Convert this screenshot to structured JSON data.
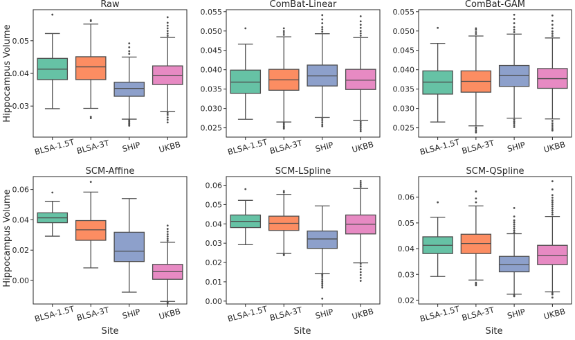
{
  "figure": {
    "x_axis_label": "Site",
    "y_axis_label": "Hippocampus Volume"
  },
  "site_colors": [
    "#66c2a5",
    "#fc8d62",
    "#8da0cb",
    "#e78ac3"
  ],
  "chart_data": [
    {
      "type": "boxplot",
      "title": "Raw",
      "categories": [
        "BLSA-1.5T",
        "BLSA-3T",
        "SHIP",
        "UKBB"
      ],
      "ylim": [
        0.0205,
        0.0595
      ],
      "yticks": [
        0.03,
        0.04,
        0.05
      ],
      "ytick_labels": [
        "0.03",
        "0.04",
        "0.05"
      ],
      "boxes": [
        {
          "whislo": 0.0292,
          "q1": 0.0381,
          "med": 0.0413,
          "q3": 0.0446,
          "whishi": 0.0522,
          "fliers": [
            0.058
          ]
        },
        {
          "whislo": 0.0293,
          "q1": 0.0381,
          "med": 0.042,
          "q3": 0.0451,
          "whishi": 0.0551,
          "fliers": [
            0.056,
            0.0563,
            0.0267,
            0.0263
          ]
        },
        {
          "whislo": 0.026,
          "q1": 0.033,
          "med": 0.0354,
          "q3": 0.0373,
          "whishi": 0.045,
          "fliers": [
            0.046,
            0.0468,
            0.048,
            0.0492,
            0.0257,
            0.0253,
            0.0249,
            0.0246,
            0.0243,
            0.024
          ]
        },
        {
          "whislo": 0.0283,
          "q1": 0.0366,
          "med": 0.0393,
          "q3": 0.0423,
          "whishi": 0.051,
          "fliers": [
            0.0515,
            0.0522,
            0.053,
            0.0538,
            0.0546,
            0.0555,
            0.0572,
            0.0279,
            0.0273,
            0.0265,
            0.0258,
            0.025
          ]
        }
      ]
    },
    {
      "type": "boxplot",
      "title": "ComBat-Linear",
      "categories": [
        "BLSA-1.5T",
        "BLSA-3T",
        "SHIP",
        "UKBB"
      ],
      "ylim": [
        0.0226,
        0.0555
      ],
      "yticks": [
        0.025,
        0.03,
        0.035,
        0.04,
        0.045,
        0.05,
        0.055
      ],
      "ytick_labels": [
        "0.025",
        "0.030",
        "0.035",
        "0.040",
        "0.045",
        "0.050",
        "0.055"
      ],
      "boxes": [
        {
          "whislo": 0.0272,
          "q1": 0.0339,
          "med": 0.0368,
          "q3": 0.0399,
          "whishi": 0.0466,
          "fliers": [
            0.0507
          ]
        },
        {
          "whislo": 0.0265,
          "q1": 0.0347,
          "med": 0.0374,
          "q3": 0.0401,
          "whishi": 0.0485,
          "fliers": [
            0.049,
            0.0495,
            0.05,
            0.0507,
            0.0262,
            0.0258,
            0.0254,
            0.0251,
            0.0248
          ]
        },
        {
          "whislo": 0.0277,
          "q1": 0.0358,
          "med": 0.0384,
          "q3": 0.0412,
          "whishi": 0.0493,
          "fliers": [
            0.0498,
            0.0504,
            0.051,
            0.052,
            0.053,
            0.0541,
            0.0273,
            0.0268,
            0.0263,
            0.0258,
            0.0254
          ]
        },
        {
          "whislo": 0.0269,
          "q1": 0.0349,
          "med": 0.0373,
          "q3": 0.0401,
          "whishi": 0.0483,
          "fliers": [
            0.0488,
            0.0494,
            0.05,
            0.0508,
            0.0516,
            0.0525,
            0.0538,
            0.0265,
            0.026,
            0.0255,
            0.025,
            0.0245,
            0.0241
          ]
        }
      ]
    },
    {
      "type": "boxplot",
      "title": "ComBat-GAM",
      "categories": [
        "BLSA-1.5T",
        "BLSA-3T",
        "SHIP",
        "UKBB"
      ],
      "ylim": [
        0.0226,
        0.0555
      ],
      "yticks": [
        0.025,
        0.03,
        0.035,
        0.04,
        0.045,
        0.05,
        0.055
      ],
      "ytick_labels": [
        "0.025",
        "0.030",
        "0.035",
        "0.040",
        "0.045",
        "0.050",
        "0.055"
      ],
      "boxes": [
        {
          "whislo": 0.0265,
          "q1": 0.0337,
          "med": 0.0368,
          "q3": 0.0397,
          "whishi": 0.0468,
          "fliers": [
            0.0508
          ]
        },
        {
          "whislo": 0.0255,
          "q1": 0.0342,
          "med": 0.037,
          "q3": 0.0397,
          "whishi": 0.0487,
          "fliers": [
            0.0492,
            0.0497,
            0.0503,
            0.0507,
            0.0251,
            0.0247,
            0.0242,
            0.0238
          ]
        },
        {
          "whislo": 0.0275,
          "q1": 0.0357,
          "med": 0.0385,
          "q3": 0.0411,
          "whishi": 0.0492,
          "fliers": [
            0.0497,
            0.0503,
            0.051,
            0.052,
            0.0531,
            0.0542,
            0.0271,
            0.0266,
            0.0262,
            0.0257,
            0.0252
          ]
        },
        {
          "whislo": 0.0273,
          "q1": 0.0352,
          "med": 0.0377,
          "q3": 0.0403,
          "whishi": 0.0482,
          "fliers": [
            0.0487,
            0.0493,
            0.0499,
            0.0507,
            0.0516,
            0.0526,
            0.054,
            0.0268,
            0.0262,
            0.0257,
            0.0252,
            0.0247,
            0.0243
          ]
        }
      ]
    },
    {
      "type": "boxplot",
      "title": "SCM-Affine",
      "categories": [
        "BLSA-1.5T",
        "BLSA-3T",
        "SHIP",
        "UKBB"
      ],
      "ylim": [
        -0.0155,
        0.0685
      ],
      "yticks": [
        0.0,
        0.02,
        0.04,
        0.06
      ],
      "ytick_labels": [
        "0.00",
        "0.02",
        "0.04",
        "0.06"
      ],
      "boxes": [
        {
          "whislo": 0.0292,
          "q1": 0.0381,
          "med": 0.0413,
          "q3": 0.0446,
          "whishi": 0.0522,
          "fliers": [
            0.058
          ]
        },
        {
          "whislo": 0.0083,
          "q1": 0.0265,
          "med": 0.0334,
          "q3": 0.0395,
          "whishi": 0.0583,
          "fliers": [
            0.065
          ]
        },
        {
          "whislo": -0.0077,
          "q1": 0.0125,
          "med": 0.0193,
          "q3": 0.0318,
          "whishi": 0.054,
          "fliers": []
        },
        {
          "whislo": -0.0138,
          "q1": 0.0008,
          "med": 0.0058,
          "q3": 0.0106,
          "whishi": 0.0252,
          "fliers": [
            0.0262,
            0.0275,
            0.029,
            0.0305,
            0.0322,
            0.034,
            0.0362,
            -0.0142,
            -0.0148
          ]
        }
      ]
    },
    {
      "type": "boxplot",
      "title": "SCM-LSpline",
      "categories": [
        "BLSA-1.5T",
        "BLSA-3T",
        "SHIP",
        "UKBB"
      ],
      "ylim": [
        -0.0015,
        0.0645
      ],
      "yticks": [
        0.0,
        0.01,
        0.02,
        0.03,
        0.04,
        0.05,
        0.06
      ],
      "ytick_labels": [
        "0.00",
        "0.01",
        "0.02",
        "0.03",
        "0.04",
        "0.05",
        "0.06"
      ],
      "boxes": [
        {
          "whislo": 0.0292,
          "q1": 0.0381,
          "med": 0.0413,
          "q3": 0.0446,
          "whishi": 0.0522,
          "fliers": [
            0.058
          ]
        },
        {
          "whislo": 0.0247,
          "q1": 0.0366,
          "med": 0.0403,
          "q3": 0.044,
          "whishi": 0.0553,
          "fliers": [
            0.0562,
            0.057,
            0.0242,
            0.0238
          ]
        },
        {
          "whislo": 0.0143,
          "q1": 0.0273,
          "med": 0.0322,
          "q3": 0.0363,
          "whishi": 0.0493,
          "fliers": [
            0.0138,
            0.013,
            0.012,
            0.011,
            0.01,
            0.009,
            0.008,
            0.007,
            0.0013
          ]
        },
        {
          "whislo": 0.0198,
          "q1": 0.0348,
          "med": 0.0398,
          "q3": 0.0446,
          "whishi": 0.0583,
          "fliers": [
            0.0592,
            0.0602,
            0.0612,
            0.0622,
            0.0193,
            0.018,
            0.0165,
            0.015,
            0.0135,
            0.012,
            0.0105
          ]
        }
      ]
    },
    {
      "type": "boxplot",
      "title": "SCM-QSpline",
      "categories": [
        "BLSA-1.5T",
        "BLSA-3T",
        "SHIP",
        "UKBB"
      ],
      "ylim": [
        0.0185,
        0.068
      ],
      "yticks": [
        0.02,
        0.03,
        0.04,
        0.05,
        0.06
      ],
      "ytick_labels": [
        "0.02",
        "0.03",
        "0.04",
        "0.05",
        "0.06"
      ],
      "boxes": [
        {
          "whislo": 0.0292,
          "q1": 0.0381,
          "med": 0.0413,
          "q3": 0.0446,
          "whishi": 0.0522,
          "fliers": [
            0.058
          ]
        },
        {
          "whislo": 0.0278,
          "q1": 0.0381,
          "med": 0.042,
          "q3": 0.0456,
          "whishi": 0.0566,
          "fliers": [
            0.058,
            0.0595,
            0.0622,
            0.0268,
            0.0263,
            0.0258
          ]
        },
        {
          "whislo": 0.0223,
          "q1": 0.031,
          "med": 0.0338,
          "q3": 0.037,
          "whishi": 0.0458,
          "fliers": [
            0.0463,
            0.047,
            0.0478,
            0.0486,
            0.0494,
            0.0502,
            0.051,
            0.0525,
            0.0558,
            0.0219,
            0.0215
          ]
        },
        {
          "whislo": 0.0232,
          "q1": 0.0338,
          "med": 0.0374,
          "q3": 0.0413,
          "whishi": 0.0525,
          "fliers": [
            0.0532,
            0.054,
            0.0548,
            0.0556,
            0.0564,
            0.0572,
            0.058,
            0.0588,
            0.0598,
            0.0608,
            0.063,
            0.0662,
            0.0228,
            0.0222,
            0.021
          ]
        }
      ]
    }
  ]
}
